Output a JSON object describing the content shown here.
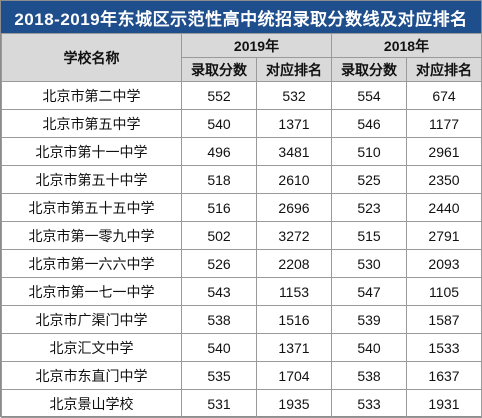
{
  "title": "2018-2019年东城区示范性高中统招录取分数线及对应排名",
  "header": {
    "school": "学校名称",
    "year_2019": "2019年",
    "year_2018": "2018年",
    "score": "录取分数",
    "rank": "对应排名"
  },
  "rows": [
    {
      "school": "北京市第二中学",
      "s2019": "552",
      "r2019": "532",
      "s2018": "554",
      "r2018": "674"
    },
    {
      "school": "北京市第五中学",
      "s2019": "540",
      "r2019": "1371",
      "s2018": "546",
      "r2018": "1177"
    },
    {
      "school": "北京市第十一中学",
      "s2019": "496",
      "r2019": "3481",
      "s2018": "510",
      "r2018": "2961"
    },
    {
      "school": "北京市第五十中学",
      "s2019": "518",
      "r2019": "2610",
      "s2018": "525",
      "r2018": "2350"
    },
    {
      "school": "北京市第五十五中学",
      "s2019": "516",
      "r2019": "2696",
      "s2018": "523",
      "r2018": "2440"
    },
    {
      "school": "北京市第一零九中学",
      "s2019": "502",
      "r2019": "3272",
      "s2018": "515",
      "r2018": "2791"
    },
    {
      "school": "北京市第一六六中学",
      "s2019": "526",
      "r2019": "2208",
      "s2018": "530",
      "r2018": "2093"
    },
    {
      "school": "北京市第一七一中学",
      "s2019": "543",
      "r2019": "1153",
      "s2018": "547",
      "r2018": "1105"
    },
    {
      "school": "北京市广渠门中学",
      "s2019": "538",
      "r2019": "1516",
      "s2018": "539",
      "r2018": "1587"
    },
    {
      "school": "北京汇文中学",
      "s2019": "540",
      "r2019": "1371",
      "s2018": "540",
      "r2018": "1533"
    },
    {
      "school": "北京市东直门中学",
      "s2019": "535",
      "r2019": "1704",
      "s2018": "538",
      "r2018": "1637"
    },
    {
      "school": "北京景山学校",
      "s2019": "531",
      "r2019": "1935",
      "s2018": "533",
      "r2018": "1931"
    }
  ],
  "colors": {
    "title_bg": "#1f4e8c",
    "title_text": "#ffffff",
    "header_bg": "#d9d9d9",
    "border": "#9a9a9a"
  }
}
